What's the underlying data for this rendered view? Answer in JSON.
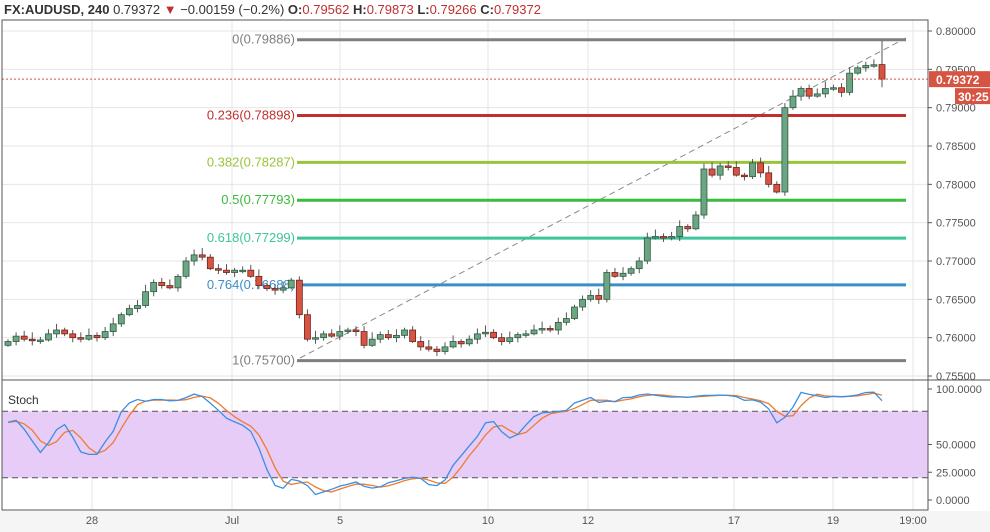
{
  "header": {
    "symbol": "FX:AUDUSD, 240",
    "last": "0.79372",
    "change": "−0.00159 (−0.2%)",
    "o_label": "O:",
    "o": "0.79562",
    "h_label": "H:",
    "h": "0.79873",
    "l_label": "L:",
    "l": "0.79266",
    "c_label": "C:",
    "c": "0.79372"
  },
  "colors": {
    "up": "#6ba583",
    "down": "#d75442",
    "stoch_k": "#3d8ee0",
    "stoch_d": "#f07b2d",
    "stoch_band": "#e6ccf7",
    "price_tag": "#d75442"
  },
  "price_axis": {
    "ticks": [
      "0.80000",
      "0.79500",
      "0.79000",
      "0.78500",
      "0.78000",
      "0.77500",
      "0.77000",
      "0.76500",
      "0.76000",
      "0.75500"
    ],
    "last_price": "0.79372",
    "countdown": "30:25"
  },
  "fib": [
    {
      "label": "0(0.79886)",
      "price": 0.79886,
      "color": "#7f7f7f"
    },
    {
      "label": "0.236(0.78898)",
      "price": 0.78898,
      "color": "#c0302e"
    },
    {
      "label": "0.382(0.78287)",
      "price": 0.78287,
      "color": "#9ac43a"
    },
    {
      "label": "0.5(0.77793)",
      "price": 0.77793,
      "color": "#3cbb3c"
    },
    {
      "label": "0.618(0.77299)",
      "price": 0.77299,
      "color": "#3ec39b"
    },
    {
      "label": "0.764(0.76688)",
      "price": 0.76688,
      "color": "#3a8fc8"
    },
    {
      "label": "1(0.75700)",
      "price": 0.757,
      "color": "#7f7f7f"
    }
  ],
  "stoch": {
    "label": "Stoch",
    "ticks": [
      "100.0000",
      "50.0000",
      "25.0000",
      "0.0000"
    ],
    "upper": 80,
    "lower": 20
  },
  "time_axis": [
    "28",
    "Jul",
    "5",
    "10",
    "12",
    "17",
    "19",
    "19:00"
  ],
  "chart_data": {
    "type": "candlestick",
    "timeframe": "240",
    "ylim": [
      0.755,
      0.8
    ],
    "close": [
      0.7595,
      0.7602,
      0.7598,
      0.7596,
      0.7597,
      0.7605,
      0.761,
      0.7605,
      0.76,
      0.7598,
      0.7603,
      0.76,
      0.7608,
      0.7618,
      0.763,
      0.7638,
      0.7642,
      0.766,
      0.7672,
      0.7668,
      0.7665,
      0.768,
      0.77,
      0.7708,
      0.7705,
      0.769,
      0.7688,
      0.7685,
      0.7688,
      0.7688,
      0.768,
      0.7668,
      0.7664,
      0.7662,
      0.7665,
      0.7675,
      0.763,
      0.7598,
      0.76,
      0.7605,
      0.7602,
      0.7608,
      0.761,
      0.7608,
      0.759,
      0.7598,
      0.7604,
      0.76,
      0.7603,
      0.761,
      0.7595,
      0.7588,
      0.7585,
      0.7582,
      0.7588,
      0.7595,
      0.7592,
      0.7598,
      0.7605,
      0.7607,
      0.76,
      0.7595,
      0.76,
      0.7604,
      0.7605,
      0.761,
      0.7612,
      0.761,
      0.762,
      0.7625,
      0.764,
      0.765,
      0.7655,
      0.765,
      0.7685,
      0.768,
      0.7684,
      0.769,
      0.77,
      0.773,
      0.7732,
      0.773,
      0.7732,
      0.7745,
      0.7742,
      0.776,
      0.782,
      0.7812,
      0.7824,
      0.7822,
      0.7812,
      0.781,
      0.7828,
      0.7815,
      0.78,
      0.779,
      0.79,
      0.7915,
      0.7925,
      0.7915,
      0.7918,
      0.7925,
      0.7926,
      0.792,
      0.7945,
      0.7952,
      0.7955,
      0.7956,
      0.79372
    ]
  }
}
